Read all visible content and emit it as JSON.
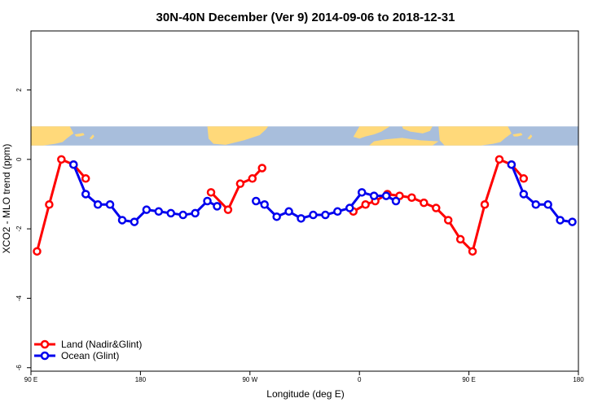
{
  "chart_data": {
    "type": "line",
    "title": "30N-40N December (Ver 9)   2014-09-06 to 2018-12-31",
    "xlabel": "Longitude (deg E)",
    "ylabel": "XCO2 - MLO trend (ppm)",
    "xlim": [
      90,
      540
    ],
    "ylim": [
      -6.1,
      3.7
    ],
    "x_ticks": [
      {
        "value": 90,
        "label": "90 E"
      },
      {
        "value": 180,
        "label": "180"
      },
      {
        "value": 270,
        "label": "90 W"
      },
      {
        "value": 360,
        "label": "0"
      },
      {
        "value": 450,
        "label": "90 E"
      },
      {
        "value": 540,
        "label": "180"
      }
    ],
    "y_ticks": [
      {
        "value": 2,
        "label": "2"
      },
      {
        "value": 0,
        "label": "0"
      },
      {
        "value": -2,
        "label": "-2"
      },
      {
        "value": -4,
        "label": "-4"
      },
      {
        "value": -6,
        "label": "-6"
      }
    ],
    "map_band": {
      "ymin": 0.4,
      "ymax": 0.95,
      "land_color": "#FFD97A",
      "ocean_color": "#A8BEDC"
    },
    "legend": {
      "position": "bottom-left"
    },
    "series": [
      {
        "name": "Land (Nadir&Glint)",
        "color": "#FF0000",
        "segments": [
          [
            [
              95,
              -2.65
            ],
            [
              105,
              -1.3
            ],
            [
              115,
              0.0
            ],
            [
              125,
              -0.15
            ],
            [
              135,
              -0.55
            ]
          ],
          [
            [
              238,
              -0.95
            ],
            [
              252,
              -1.45
            ],
            [
              262,
              -0.7
            ],
            [
              272,
              -0.55
            ],
            [
              280,
              -0.25
            ]
          ],
          [
            [
              355,
              -1.5
            ],
            [
              365,
              -1.3
            ],
            [
              373,
              -1.2
            ],
            [
              383,
              -1.0
            ],
            [
              393,
              -1.05
            ],
            [
              403,
              -1.1
            ],
            [
              413,
              -1.25
            ],
            [
              423,
              -1.4
            ],
            [
              433,
              -1.75
            ],
            [
              443,
              -2.3
            ],
            [
              453,
              -2.65
            ],
            [
              463,
              -1.3
            ],
            [
              475,
              0.0
            ],
            [
              485,
              -0.15
            ],
            [
              495,
              -0.55
            ]
          ]
        ]
      },
      {
        "name": "Ocean (Glint)",
        "color": "#0000EE",
        "segments": [
          [
            [
              125,
              -0.15
            ],
            [
              135,
              -1.0
            ],
            [
              145,
              -1.3
            ],
            [
              155,
              -1.3
            ],
            [
              165,
              -1.75
            ],
            [
              175,
              -1.8
            ],
            [
              185,
              -1.45
            ],
            [
              195,
              -1.5
            ],
            [
              205,
              -1.55
            ],
            [
              215,
              -1.6
            ],
            [
              225,
              -1.55
            ],
            [
              235,
              -1.2
            ],
            [
              243,
              -1.35
            ]
          ],
          [
            [
              275,
              -1.2
            ],
            [
              282,
              -1.3
            ],
            [
              292,
              -1.65
            ],
            [
              302,
              -1.5
            ],
            [
              312,
              -1.7
            ],
            [
              322,
              -1.6
            ],
            [
              332,
              -1.6
            ],
            [
              342,
              -1.5
            ],
            [
              352,
              -1.4
            ],
            [
              362,
              -0.95
            ],
            [
              372,
              -1.05
            ],
            [
              382,
              -1.05
            ],
            [
              390,
              -1.2
            ]
          ],
          [
            [
              485,
              -0.15
            ],
            [
              495,
              -1.0
            ],
            [
              505,
              -1.3
            ],
            [
              515,
              -1.3
            ],
            [
              525,
              -1.75
            ],
            [
              535,
              -1.8
            ]
          ]
        ]
      }
    ]
  }
}
